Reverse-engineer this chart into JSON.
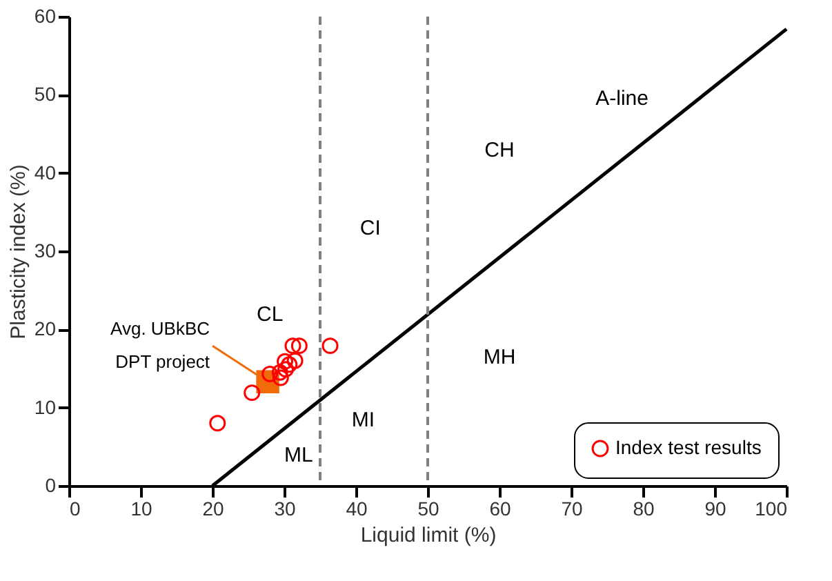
{
  "chart_data": {
    "type": "scatter",
    "xlabel": "Liquid limit (%)",
    "ylabel": "Plasticity index (%)",
    "xlim": [
      0,
      100
    ],
    "ylim": [
      0,
      60
    ],
    "xticks": [
      0,
      10,
      20,
      30,
      40,
      50,
      60,
      70,
      80,
      90,
      100
    ],
    "yticks": [
      0,
      10,
      20,
      30,
      40,
      50,
      60
    ],
    "grid": false,
    "legend": "bottom right",
    "series": [
      {
        "name": "Index test results",
        "marker": "circle",
        "color": "#ff0000",
        "x": [
          20.7,
          25.5,
          28.0,
          29.4,
          29.5,
          30.2,
          30.7,
          30.1,
          31.5,
          31.2,
          32.1,
          36.4
        ],
        "values": [
          8.0,
          11.9,
          14.3,
          14.5,
          13.8,
          14.9,
          15.5,
          15.9,
          16.0,
          17.9,
          17.9,
          17.9
        ]
      },
      {
        "name": "Avg. UBkBC\nDPT project",
        "type": "scatter",
        "marker": "square",
        "color": "#f26b0a",
        "x": [
          27.7
        ],
        "values": [
          13.3
        ]
      },
      {
        "name": "A-line",
        "type": "line",
        "color": "#000000",
        "line_style": "solid",
        "x": [
          20,
          100
        ],
        "values": [
          0,
          58.4
        ]
      }
    ],
    "ref_lines": [
      {
        "axis": "x",
        "value": 35,
        "color": "#808080",
        "line_style": "dashed"
      },
      {
        "axis": "x",
        "value": 50,
        "color": "#808080",
        "line_style": "dashed"
      }
    ],
    "annotations": [
      "CL",
      "CI",
      "CH",
      "MH",
      "MI",
      "ML"
    ]
  }
}
